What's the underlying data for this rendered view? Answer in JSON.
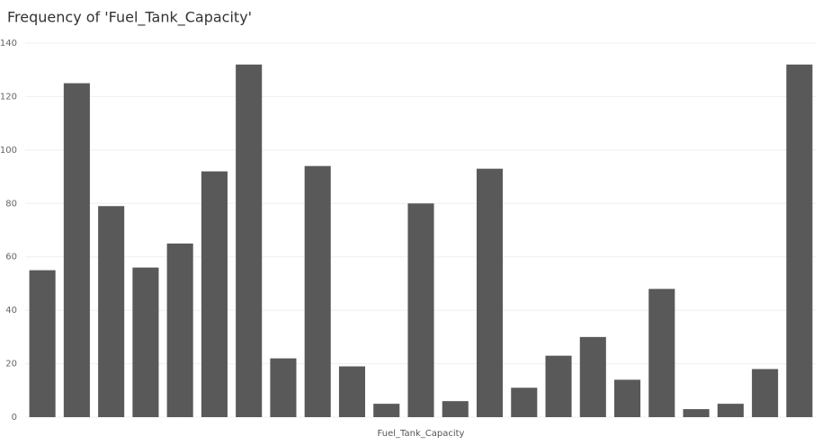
{
  "chart_data": {
    "type": "bar",
    "title": "Frequency of 'Fuel_Tank_Capacity'",
    "x_label": "Fuel_Tank_Capacity",
    "categories": [
      null,
      null,
      null,
      null,
      null,
      null,
      null,
      null,
      null,
      null,
      null,
      null,
      null,
      null,
      null,
      null,
      null,
      null,
      null,
      null,
      null,
      null,
      null
    ],
    "values": [
      55,
      125,
      79,
      56,
      65,
      92,
      132,
      22,
      94,
      19,
      5,
      80,
      6,
      93,
      11,
      23,
      30,
      14,
      48,
      3,
      5,
      18,
      132
    ],
    "color": "#595959",
    "ylim": [
      0,
      140
    ],
    "yticks": [
      0,
      20,
      40,
      60,
      80,
      100,
      120,
      140
    ],
    "grid": true
  }
}
